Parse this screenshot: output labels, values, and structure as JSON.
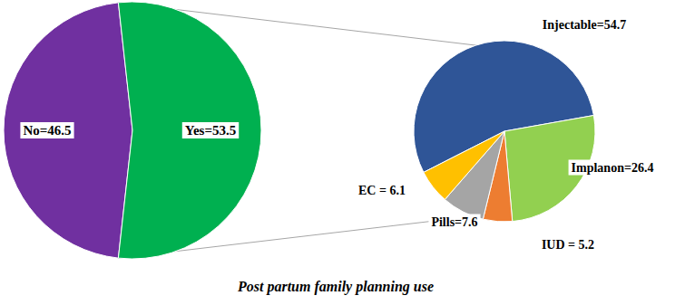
{
  "chart_data": [
    {
      "type": "pie",
      "title": "Post partum family planning use",
      "values": [
        46.5,
        53.5
      ],
      "value_labels": [
        "No=46.5",
        "Yes=53.5"
      ],
      "colors": [
        "#7030a0",
        "#00b050"
      ],
      "data_labels": true
    },
    {
      "type": "pie",
      "values": [
        54.7,
        26.4,
        5.2,
        7.6,
        6.1
      ],
      "value_labels": [
        "Injectable=54.7",
        "Implanon=26.4",
        "IUD = 5.2",
        "Pills=7.6",
        "EC = 6.1"
      ],
      "colors": [
        "#2f5597",
        "#92d050",
        "#ed7d31",
        "#a5a5a5",
        "#ffc000"
      ],
      "data_labels": true
    }
  ]
}
